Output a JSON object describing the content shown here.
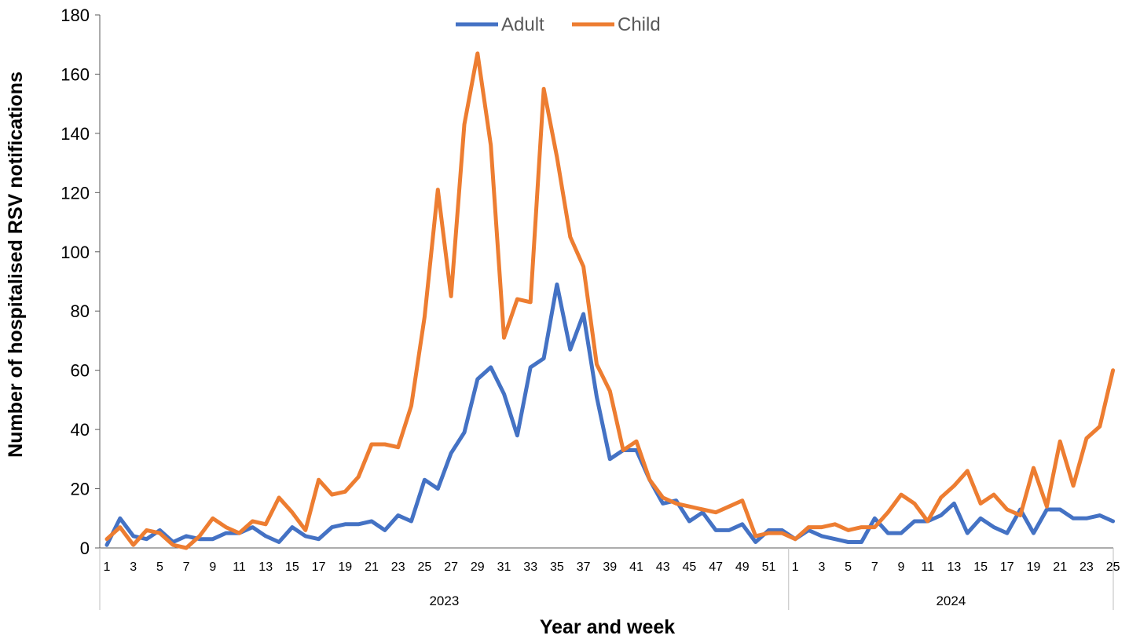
{
  "chart_data": {
    "type": "line",
    "title": "",
    "xlabel": "Year and week",
    "ylabel": "Number of hospitalised  RSV notifications",
    "ylim": [
      0,
      180
    ],
    "yticks": [
      0,
      20,
      40,
      60,
      80,
      100,
      120,
      140,
      160,
      180
    ],
    "legend_position": "top-center",
    "grid": false,
    "groups": [
      {
        "label": "2023",
        "weeks": [
          1,
          2,
          3,
          4,
          5,
          6,
          7,
          8,
          9,
          10,
          11,
          12,
          13,
          14,
          15,
          16,
          17,
          18,
          19,
          20,
          21,
          22,
          23,
          24,
          25,
          26,
          27,
          28,
          29,
          30,
          31,
          32,
          33,
          34,
          35,
          36,
          37,
          38,
          39,
          40,
          41,
          42,
          43,
          44,
          45,
          46,
          47,
          48,
          49,
          50,
          51,
          52
        ]
      },
      {
        "label": "2024",
        "weeks": [
          1,
          2,
          3,
          4,
          5,
          6,
          7,
          8,
          9,
          10,
          11,
          12,
          13,
          14,
          15,
          16,
          17,
          18,
          19,
          20,
          21,
          22,
          23,
          24,
          25
        ]
      }
    ],
    "x_tick_labels": [
      "1",
      "",
      "3",
      "",
      "5",
      "",
      "7",
      "",
      "9",
      "",
      "11",
      "",
      "13",
      "",
      "15",
      "",
      "17",
      "",
      "19",
      "",
      "21",
      "",
      "23",
      "",
      "25",
      "",
      "27",
      "",
      "29",
      "",
      "31",
      "",
      "33",
      "",
      "35",
      "",
      "37",
      "",
      "39",
      "",
      "41",
      "",
      "43",
      "",
      "45",
      "",
      "47",
      "",
      "49",
      "",
      "51",
      "",
      "1",
      "",
      "3",
      "",
      "5",
      "",
      "7",
      "",
      "9",
      "",
      "11",
      "",
      "13",
      "",
      "15",
      "",
      "17",
      "",
      "19",
      "",
      "21",
      "",
      "23",
      "",
      "25"
    ],
    "series": [
      {
        "name": "Adult",
        "color": "#4472C4",
        "values": [
          1,
          10,
          4,
          3,
          6,
          2,
          4,
          3,
          3,
          5,
          5,
          7,
          4,
          2,
          7,
          4,
          3,
          7,
          8,
          8,
          9,
          6,
          11,
          9,
          23,
          20,
          32,
          39,
          57,
          61,
          52,
          38,
          61,
          64,
          89,
          67,
          79,
          51,
          30,
          33,
          33,
          23,
          15,
          16,
          9,
          12,
          6,
          6,
          8,
          2,
          6,
          6,
          3,
          6,
          4,
          3,
          2,
          2,
          10,
          5,
          5,
          9,
          9,
          11,
          15,
          5,
          10,
          7,
          5,
          13,
          5,
          13,
          13,
          10,
          10,
          11,
          9
        ]
      },
      {
        "name": "Child",
        "color": "#ED7D31",
        "values": [
          3,
          7,
          1,
          6,
          5,
          1,
          0,
          4,
          10,
          7,
          5,
          9,
          8,
          17,
          12,
          6,
          23,
          18,
          19,
          24,
          35,
          35,
          34,
          48,
          78,
          121,
          85,
          143,
          167,
          136,
          71,
          84,
          83,
          155,
          132,
          105,
          95,
          62,
          53,
          33,
          36,
          23,
          17,
          15,
          14,
          13,
          12,
          14,
          16,
          4,
          5,
          5,
          3,
          7,
          7,
          8,
          6,
          7,
          7,
          12,
          18,
          15,
          9,
          17,
          21,
          26,
          15,
          18,
          13,
          11,
          27,
          14,
          36,
          21,
          37,
          41,
          60
        ]
      }
    ]
  }
}
